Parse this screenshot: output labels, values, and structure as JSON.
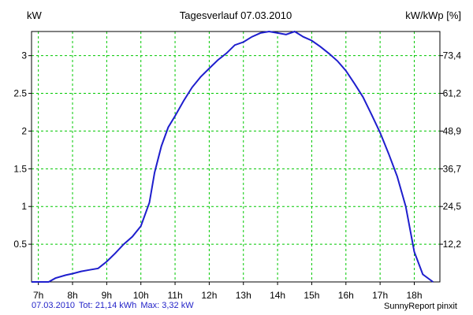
{
  "chart_data": {
    "type": "line",
    "title": "Tagesverlauf 07.03.2010",
    "ylabel_left": "kW",
    "ylabel_right": "kW/kWp [%]",
    "xlabel": "",
    "x_ticks": [
      "7h",
      "8h",
      "9h",
      "10h",
      "11h",
      "12h",
      "13h",
      "14h",
      "15h",
      "16h",
      "17h",
      "18h"
    ],
    "x_tick_values": [
      7,
      8,
      9,
      10,
      11,
      12,
      13,
      14,
      15,
      16,
      17,
      18
    ],
    "xlim": [
      6.8,
      18.75
    ],
    "y_ticks": [
      0.5,
      1,
      1.5,
      2,
      2.5,
      3
    ],
    "y_tick_labels": [
      "0.5",
      "1",
      "1.5",
      "2",
      "2.5",
      "3"
    ],
    "ylim": [
      0,
      3.32
    ],
    "y_right_ticks": [
      {
        "label": "12,2",
        "y": 0.5
      },
      {
        "label": "24,5",
        "y": 1.0
      },
      {
        "label": "36,7",
        "y": 1.5
      },
      {
        "label": "48,9",
        "y": 2.0
      },
      {
        "label": "61,2",
        "y": 2.5
      },
      {
        "label": "73,4",
        "y": 3.0
      }
    ],
    "grid": true,
    "grid_color": "#00c800",
    "line_color": "#1e1ecd",
    "series": [
      {
        "x": [
          6.8,
          7.3,
          7.5,
          7.8,
          8.0,
          8.25,
          8.5,
          8.75,
          9.0,
          9.25,
          9.5,
          9.75,
          10.0,
          10.25,
          10.4,
          10.6,
          10.8,
          11.0,
          11.25,
          11.5,
          11.75,
          12.0,
          12.25,
          12.5,
          12.75,
          13.0,
          13.25,
          13.5,
          13.75,
          14.0,
          14.25,
          14.5,
          14.75,
          15.0,
          15.25,
          15.5,
          15.75,
          16.0,
          16.25,
          16.5,
          16.75,
          17.0,
          17.25,
          17.5,
          17.75,
          18.0,
          18.25,
          18.55
        ],
        "y": [
          0.0,
          0.0,
          0.05,
          0.09,
          0.11,
          0.14,
          0.16,
          0.18,
          0.27,
          0.38,
          0.5,
          0.6,
          0.74,
          1.05,
          1.45,
          1.8,
          2.05,
          2.2,
          2.4,
          2.58,
          2.72,
          2.83,
          2.94,
          3.03,
          3.14,
          3.18,
          3.25,
          3.3,
          3.32,
          3.3,
          3.28,
          3.32,
          3.25,
          3.2,
          3.12,
          3.03,
          2.93,
          2.8,
          2.63,
          2.45,
          2.22,
          1.98,
          1.7,
          1.4,
          1.0,
          0.4,
          0.1,
          0.0
        ]
      }
    ]
  },
  "footer": {
    "date": "07.03.2010",
    "total": "Tot: 21,14 kWh",
    "max": "Max: 3,32 kW",
    "source": "SunnyReport pinxit"
  }
}
